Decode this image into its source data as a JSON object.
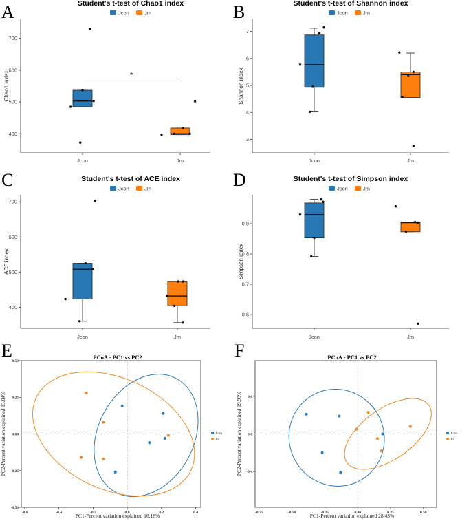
{
  "colors": {
    "jcon": "#2778b4",
    "jm": "#fe7f0e",
    "pcoa_jcon": "#2b7bb9",
    "pcoa_jm": "#f08a24",
    "axis": "#333333",
    "grid": "#b5b5b5",
    "dot": "#111111"
  },
  "chart_data": [
    {
      "panel": "A",
      "type": "box",
      "title": "Student's t-test of Chao1 index",
      "legend": [
        "Jcon",
        "Jm"
      ],
      "categories": [
        "Jcon",
        "Jm"
      ],
      "ylabel": "Chao1 index",
      "xlabel": "",
      "ylim": [
        340,
        760
      ],
      "yticks": [
        400,
        500,
        600,
        700
      ],
      "boxes": [
        {
          "name": "Jcon",
          "q1": 485,
          "median": 503,
          "q3": 537,
          "whisker_low": 485,
          "whisker_high": 537
        },
        {
          "name": "Jm",
          "q1": 397,
          "median": 400,
          "q3": 418,
          "whisker_low": 397,
          "whisker_high": 418
        }
      ],
      "points": [
        {
          "group": 0,
          "offset": 0.1,
          "value": 730
        },
        {
          "group": 0,
          "offset": 0,
          "value": 537
        },
        {
          "group": 0,
          "offset": 0.15,
          "value": 503
        },
        {
          "group": 0,
          "offset": -0.16,
          "value": 485
        },
        {
          "group": 0,
          "offset": -0.03,
          "value": 372
        },
        {
          "group": 1,
          "offset": 0.2,
          "value": 502
        },
        {
          "group": 1,
          "offset": 0.04,
          "value": 418
        },
        {
          "group": 1,
          "offset": -0.08,
          "value": 400
        },
        {
          "group": 1,
          "offset": 0.13,
          "value": 400
        },
        {
          "group": 1,
          "offset": -0.25,
          "value": 397
        }
      ],
      "significance": {
        "label": "*",
        "value": 575
      }
    },
    {
      "panel": "B",
      "type": "box",
      "title": "Student's t-test of Shannon index",
      "legend": [
        "Jcon",
        "Jm"
      ],
      "categories": [
        "Jcon",
        "Jm"
      ],
      "ylabel": "Shannon index",
      "xlabel": "",
      "ylim": [
        2.5,
        7.45
      ],
      "yticks": [
        3,
        4,
        5,
        6,
        7
      ],
      "boxes": [
        {
          "name": "Jcon",
          "q1": 4.93,
          "median": 5.77,
          "q3": 6.87,
          "whisker_low": 4.02,
          "whisker_high": 7.12
        },
        {
          "name": "Jm",
          "q1": 4.55,
          "median": 5.4,
          "q3": 5.5,
          "whisker_low": 4.55,
          "whisker_high": 6.2
        }
      ],
      "points": [
        {
          "group": 0,
          "offset": 0.13,
          "value": 7.15
        },
        {
          "group": 0,
          "offset": 0.07,
          "value": 6.93
        },
        {
          "group": 0,
          "offset": -0.19,
          "value": 5.77
        },
        {
          "group": 0,
          "offset": -0.02,
          "value": 4.95
        },
        {
          "group": 0,
          "offset": -0.06,
          "value": 4.02
        },
        {
          "group": 1,
          "offset": -0.15,
          "value": 6.22
        },
        {
          "group": 1,
          "offset": 0.04,
          "value": 5.5
        },
        {
          "group": 1,
          "offset": -0.03,
          "value": 5.35
        },
        {
          "group": 1,
          "offset": -0.11,
          "value": 4.57
        },
        {
          "group": 1,
          "offset": 0.04,
          "value": 2.75
        }
      ]
    },
    {
      "panel": "C",
      "type": "box",
      "title": "Student's t-test of ACE index",
      "legend": [
        "Jcon",
        "Jm"
      ],
      "categories": [
        "Jcon",
        "Jm"
      ],
      "ylabel": "ACE index",
      "xlabel": "",
      "ylim": [
        340,
        720
      ],
      "yticks": [
        400,
        500,
        600,
        700
      ],
      "boxes": [
        {
          "name": "Jcon",
          "q1": 423,
          "median": 508,
          "q3": 525,
          "whisker_low": 360,
          "whisker_high": 525
        },
        {
          "name": "Jm",
          "q1": 404,
          "median": 432,
          "q3": 473,
          "whisker_low": 356,
          "whisker_high": 473
        }
      ],
      "points": [
        {
          "group": 0,
          "offset": 0.17,
          "value": 703
        },
        {
          "group": 0,
          "offset": 0.04,
          "value": 525
        },
        {
          "group": 0,
          "offset": 0.14,
          "value": 508
        },
        {
          "group": 0,
          "offset": -0.23,
          "value": 423
        },
        {
          "group": 0,
          "offset": -0.04,
          "value": 360
        },
        {
          "group": 1,
          "offset": 0.01,
          "value": 473
        },
        {
          "group": 1,
          "offset": 0.08,
          "value": 473
        },
        {
          "group": 1,
          "offset": -0.14,
          "value": 432
        },
        {
          "group": 1,
          "offset": -0.04,
          "value": 404
        },
        {
          "group": 1,
          "offset": 0.07,
          "value": 356
        }
      ]
    },
    {
      "panel": "D",
      "type": "box",
      "title": "Student's t-test of Simpson index",
      "legend": [
        "Jcon",
        "Jm"
      ],
      "categories": [
        "Jcon",
        "Jm"
      ],
      "ylabel": "Simpson index",
      "xlabel": "",
      "ylim": [
        0.555,
        0.995
      ],
      "yticks": [
        0.6,
        0.7,
        0.8,
        0.9
      ],
      "boxes": [
        {
          "name": "Jcon",
          "q1": 0.853,
          "median": 0.93,
          "q3": 0.968,
          "whisker_low": 0.792,
          "whisker_high": 0.98
        },
        {
          "name": "Jm",
          "q1": 0.873,
          "median": 0.903,
          "q3": 0.905,
          "whisker_low": 0.873,
          "whisker_high": 0.905
        }
      ],
      "points": [
        {
          "group": 0,
          "offset": 0.09,
          "value": 0.98
        },
        {
          "group": 0,
          "offset": 0.12,
          "value": 0.972
        },
        {
          "group": 0,
          "offset": -0.19,
          "value": 0.93
        },
        {
          "group": 0,
          "offset": 0,
          "value": 0.853
        },
        {
          "group": 0,
          "offset": -0.04,
          "value": 0.792
        },
        {
          "group": 1,
          "offset": -0.2,
          "value": 0.957
        },
        {
          "group": 1,
          "offset": 0.06,
          "value": 0.905
        },
        {
          "group": 1,
          "offset": 0.1,
          "value": 0.903
        },
        {
          "group": 1,
          "offset": -0.06,
          "value": 0.873
        },
        {
          "group": 1,
          "offset": 0.1,
          "value": 0.57
        }
      ]
    },
    {
      "panel": "E",
      "type": "scatter",
      "title": "PCoA - PC1 vs PC2",
      "xlabel": "PC1-Percent variation explained 16.18%",
      "ylabel": "PC2-Percent variation explained 13.84%",
      "xlim": [
        -0.62,
        0.43
      ],
      "ylim": [
        -0.5,
        0.5
      ],
      "xticks": [
        -0.6,
        -0.4,
        -0.2,
        0.0,
        0.2,
        0.4
      ],
      "xtick_labels": [
        "-0.6",
        "-0.4",
        "-0.2",
        "0.0",
        "0.2",
        "0.4"
      ],
      "yticks": [
        -0.5,
        -0.25,
        0.0,
        0.25,
        0.5
      ],
      "ytick_labels": [
        "-0.50",
        "-0.25",
        "0.00",
        "0.25",
        "0.50"
      ],
      "legend": [
        "Jcon",
        "Jm"
      ],
      "series": [
        {
          "name": "Jcon",
          "x": [
            -0.03,
            0.21,
            0.22,
            0.13,
            -0.07
          ],
          "y": [
            0.19,
            0.14,
            -0.03,
            -0.06,
            -0.26
          ]
        },
        {
          "name": "Jm",
          "x": [
            -0.24,
            -0.14,
            0.24,
            -0.27,
            -0.14
          ],
          "y": [
            0.28,
            0.08,
            -0.01,
            -0.16,
            -0.17
          ]
        }
      ],
      "ellipses": [
        {
          "name": "Jcon",
          "cx": 0.11,
          "cy": -0.01,
          "rx": 0.28,
          "ry": 0.44,
          "angle": 28
        },
        {
          "name": "Jm",
          "cx": -0.08,
          "cy": 0.0,
          "rx": 0.5,
          "ry": 0.38,
          "angle": 25
        }
      ]
    },
    {
      "panel": "F",
      "type": "scatter",
      "title": "PCoA - PC1 vs PC2",
      "xlabel": "PC1-Percent variation explained 28.43%",
      "ylabel": "PC2-Percent variation explained 19.93%",
      "xlim": [
        -0.78,
        0.6
      ],
      "ylim": [
        -0.78,
        0.78
      ],
      "xticks": [
        -0.75,
        -0.5,
        -0.25,
        0.0,
        0.25,
        0.5
      ],
      "xtick_labels": [
        "-0.75",
        "-0.50",
        "-0.25",
        "0.00",
        "0.25",
        "0.50"
      ],
      "yticks": [
        -0.4,
        0.0,
        0.4
      ],
      "ytick_labels": [
        "-0.4",
        "0.0",
        "0.4"
      ],
      "legend": [
        "Jcon",
        "Jm"
      ],
      "series": [
        {
          "name": "Jcon",
          "x": [
            -0.39,
            -0.14,
            0.19,
            -0.27,
            -0.13
          ],
          "y": [
            0.21,
            0.19,
            0.0,
            -0.2,
            -0.41
          ]
        },
        {
          "name": "Jm",
          "x": [
            0.08,
            0.4,
            -0.01,
            0.15,
            0.18
          ],
          "y": [
            0.23,
            0.08,
            0.05,
            -0.05,
            -0.18
          ]
        }
      ],
      "ellipses": [
        {
          "name": "Jcon",
          "cx": -0.16,
          "cy": -0.04,
          "rx": 0.36,
          "ry": 0.52,
          "angle": -30
        },
        {
          "name": "Jm",
          "cx": 0.23,
          "cy": 0.0,
          "rx": 0.38,
          "ry": 0.27,
          "angle": -35
        }
      ]
    }
  ]
}
